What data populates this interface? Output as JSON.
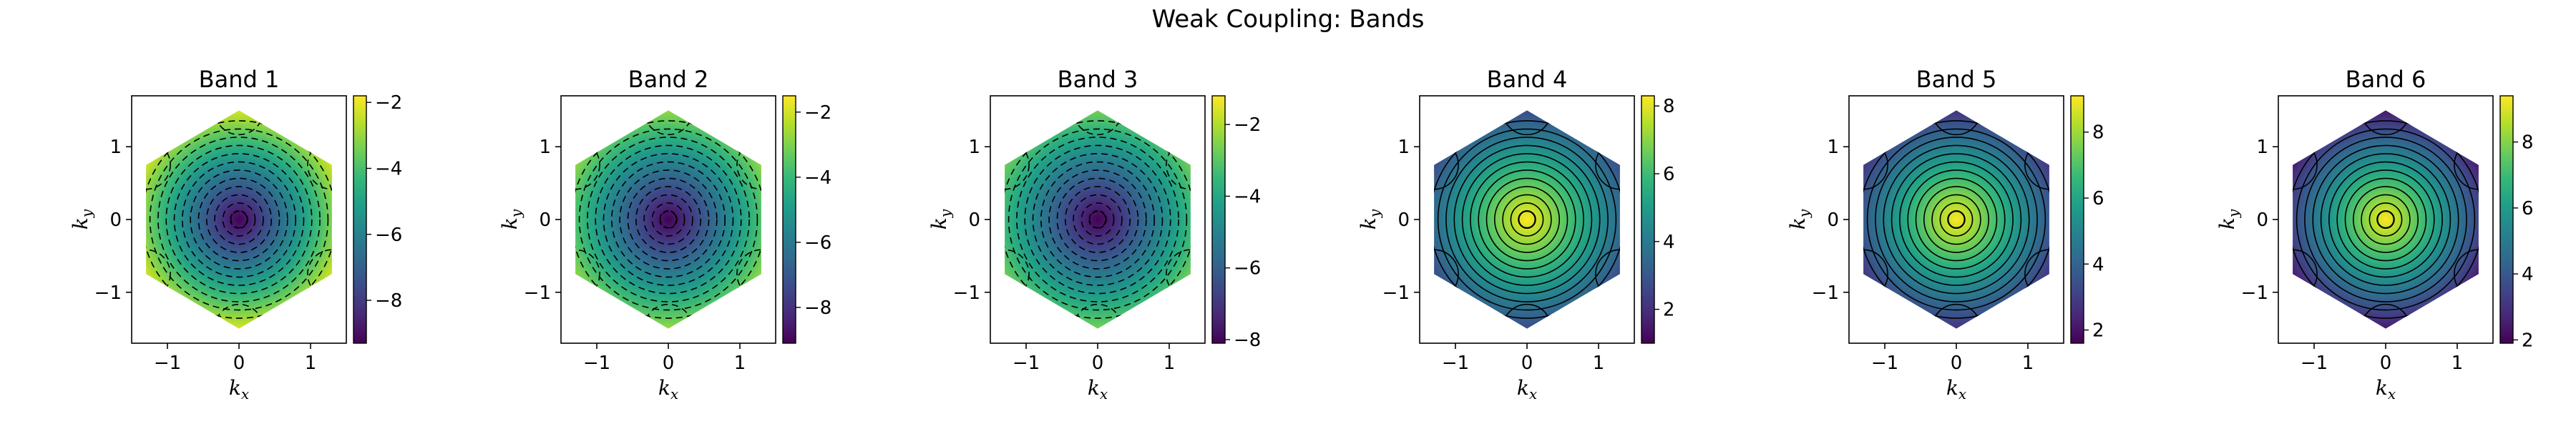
{
  "figure": {
    "title": "Weak Coupling: Bands"
  },
  "chart_data": [
    {
      "type": "heatmap",
      "title": "Band 1",
      "xlabel": "k",
      "xsub": "x",
      "ylabel": "k",
      "ysub": "y",
      "xlim": [
        -1.5,
        1.5
      ],
      "ylim": [
        -1.7,
        1.7
      ],
      "xticks": [
        -1,
        0,
        1
      ],
      "yticks": [
        -1,
        0,
        1
      ],
      "colorbar": {
        "ticks": [
          -2,
          -4,
          -6,
          -8
        ],
        "range": [
          -9.3,
          -1.8
        ]
      },
      "center_value": -9.3,
      "edge_value": -2.0,
      "contour_style": "dashed",
      "contour_levels": 12
    },
    {
      "type": "heatmap",
      "title": "Band 2",
      "xlabel": "k",
      "xsub": "x",
      "ylabel": "k",
      "ysub": "y",
      "xlim": [
        -1.5,
        1.5
      ],
      "ylim": [
        -1.7,
        1.7
      ],
      "xticks": [
        -1,
        0,
        1
      ],
      "yticks": [
        -1,
        0,
        1
      ],
      "colorbar": {
        "ticks": [
          -2,
          -4,
          -6,
          -8
        ],
        "range": [
          -9.1,
          -1.5
        ]
      },
      "center_value": -9.1,
      "edge_value": -2.5,
      "contour_style": "dashed",
      "contour_levels": 12
    },
    {
      "type": "heatmap",
      "title": "Band 3",
      "xlabel": "k",
      "xsub": "x",
      "ylabel": "k",
      "ysub": "y",
      "xlim": [
        -1.5,
        1.5
      ],
      "ylim": [
        -1.7,
        1.7
      ],
      "xticks": [
        -1,
        0,
        1
      ],
      "yticks": [
        -1,
        0,
        1
      ],
      "colorbar": {
        "ticks": [
          -2,
          -4,
          -6,
          -8
        ],
        "range": [
          -8.1,
          -1.2
        ]
      },
      "center_value": -8.1,
      "edge_value": -2.5,
      "contour_style": "dashed",
      "contour_levels": 12
    },
    {
      "type": "heatmap",
      "title": "Band 4",
      "xlabel": "k",
      "xsub": "x",
      "ylabel": "k",
      "ysub": "y",
      "xlim": [
        -1.5,
        1.5
      ],
      "ylim": [
        -1.7,
        1.7
      ],
      "xticks": [
        -1,
        0,
        1
      ],
      "yticks": [
        -1,
        0,
        1
      ],
      "colorbar": {
        "ticks": [
          2,
          4,
          6,
          8
        ],
        "range": [
          1.0,
          8.3
        ]
      },
      "center_value": 8.3,
      "edge_value": 2.5,
      "contour_style": "solid",
      "contour_levels": 12
    },
    {
      "type": "heatmap",
      "title": "Band 5",
      "xlabel": "k",
      "xsub": "x",
      "ylabel": "k",
      "ysub": "y",
      "xlim": [
        -1.5,
        1.5
      ],
      "ylim": [
        -1.7,
        1.7
      ],
      "xticks": [
        -1,
        0,
        1
      ],
      "yticks": [
        -1,
        0,
        1
      ],
      "colorbar": {
        "ticks": [
          2,
          4,
          6,
          8
        ],
        "range": [
          1.6,
          9.1
        ]
      },
      "center_value": 9.1,
      "edge_value": 2.5,
      "contour_style": "solid",
      "contour_levels": 12
    },
    {
      "type": "heatmap",
      "title": "Band 6",
      "xlabel": "k",
      "xsub": "x",
      "ylabel": "k",
      "ysub": "y",
      "xlim": [
        -1.5,
        1.5
      ],
      "ylim": [
        -1.7,
        1.7
      ],
      "xticks": [
        -1,
        0,
        1
      ],
      "yticks": [
        -1,
        0,
        1
      ],
      "colorbar": {
        "ticks": [
          2,
          4,
          6,
          8
        ],
        "range": [
          1.9,
          9.4
        ]
      },
      "center_value": 9.4,
      "edge_value": 2.2,
      "contour_style": "solid",
      "contour_levels": 12
    }
  ],
  "colormap": [
    "#440154",
    "#482878",
    "#3e4989",
    "#31688e",
    "#26828e",
    "#1f9e89",
    "#35b779",
    "#6ece58",
    "#b5de2b",
    "#fde725"
  ]
}
